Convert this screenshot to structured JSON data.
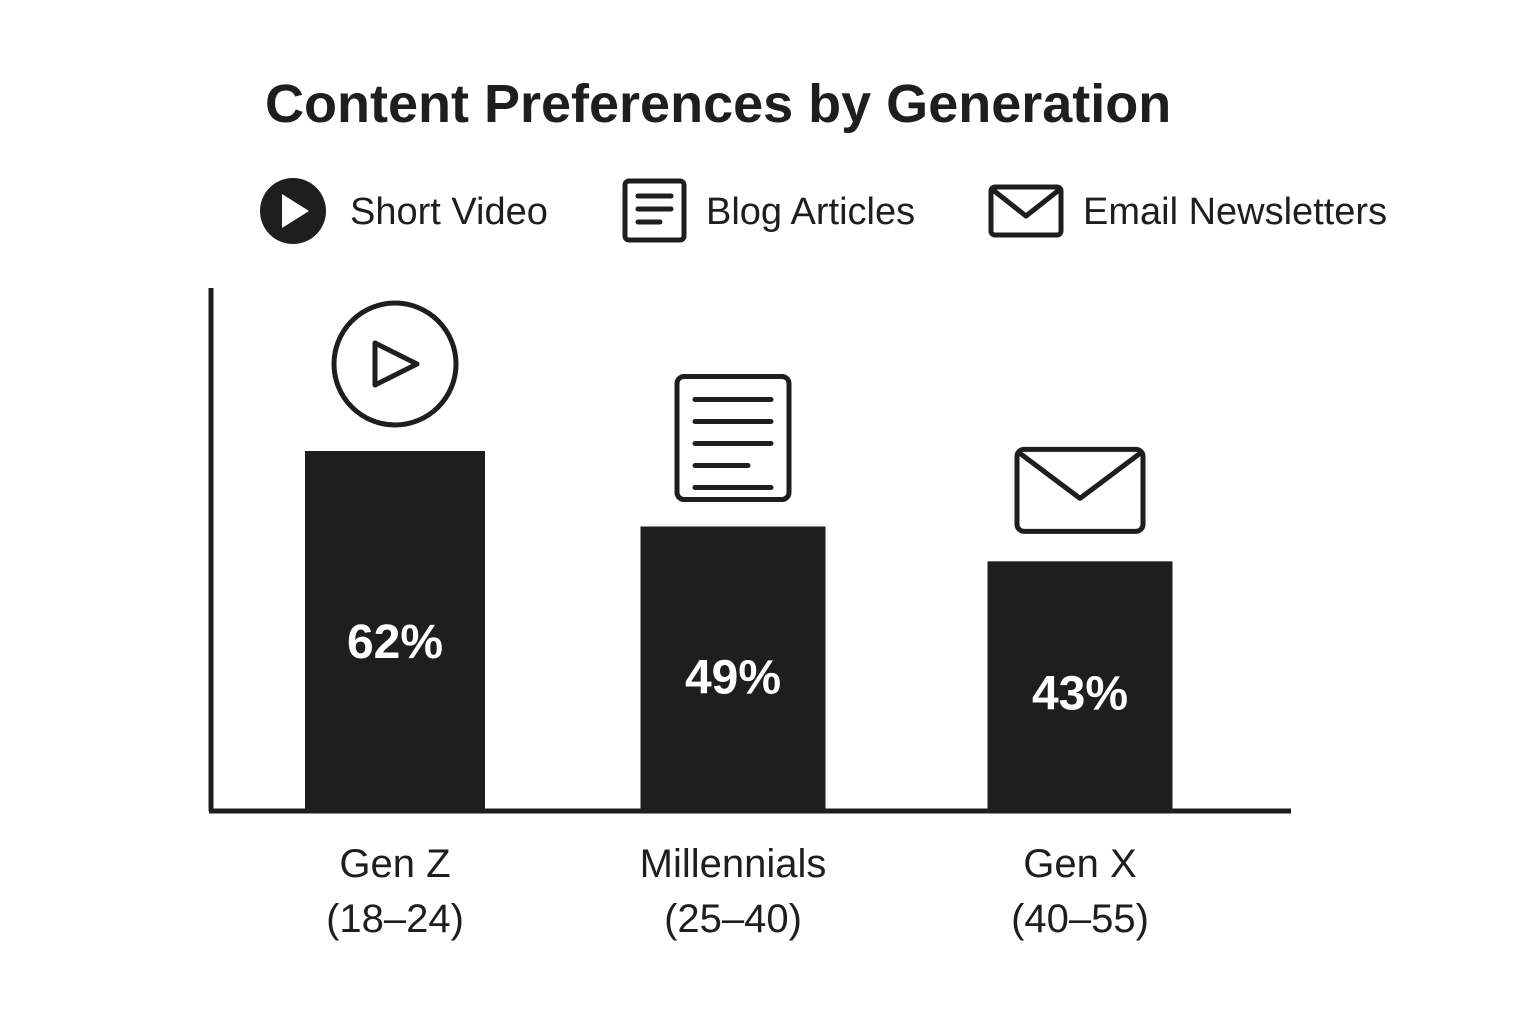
{
  "chart_data": {
    "type": "bar",
    "title": "Content Preferences by Generation",
    "categories": [
      "Gen Z",
      "Millennials",
      "Gen X"
    ],
    "category_sublabels": [
      "(18–24)",
      "(25–40)",
      "(40–55)"
    ],
    "values": [
      62,
      49,
      43
    ],
    "value_labels": [
      "62%",
      "49%",
      "43%"
    ],
    "bar_icons": [
      "play-icon",
      "document-icon",
      "envelope-icon"
    ],
    "legend": [
      {
        "label": "Short Video",
        "icon": "play-icon"
      },
      {
        "label": "Blog Articles",
        "icon": "document-icon"
      },
      {
        "label": "Email Newsletters",
        "icon": "envelope-icon"
      }
    ],
    "legend_position": "top",
    "xlabel": "",
    "ylabel": "",
    "ylim": [
      0,
      90
    ],
    "grid": false,
    "colors": {
      "bar": "#1e1e1e",
      "text": "#1e1e1e",
      "value_text": "#ffffff"
    }
  }
}
